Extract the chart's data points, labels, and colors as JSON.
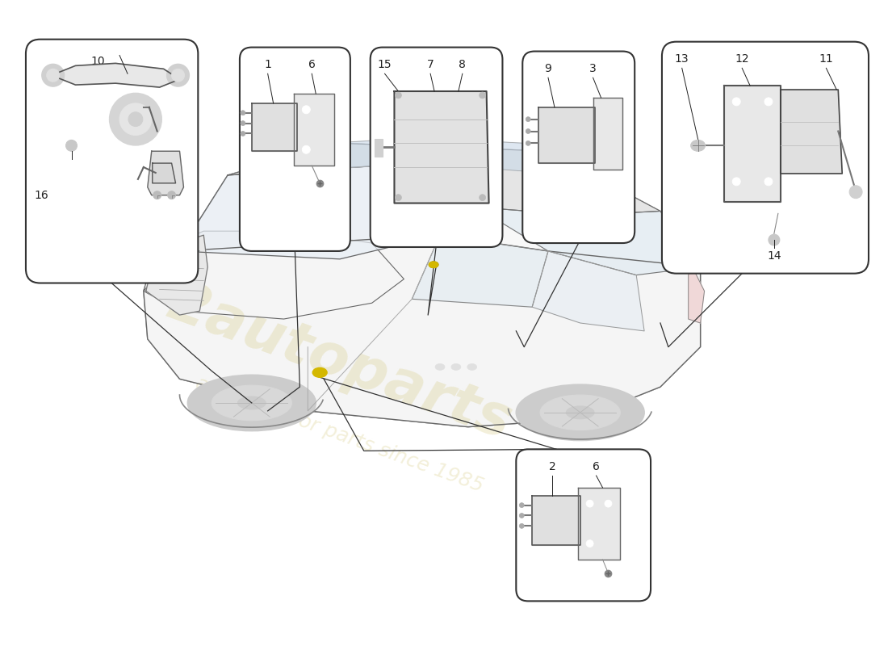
{
  "bg_color": "#ffffff",
  "line_color": "#222222",
  "box_fill": "#ffffff",
  "box_edge": "#333333",
  "watermark_color": "#d4c87a",
  "arrow_color": "#222222",
  "part_label_fontsize": 10
}
